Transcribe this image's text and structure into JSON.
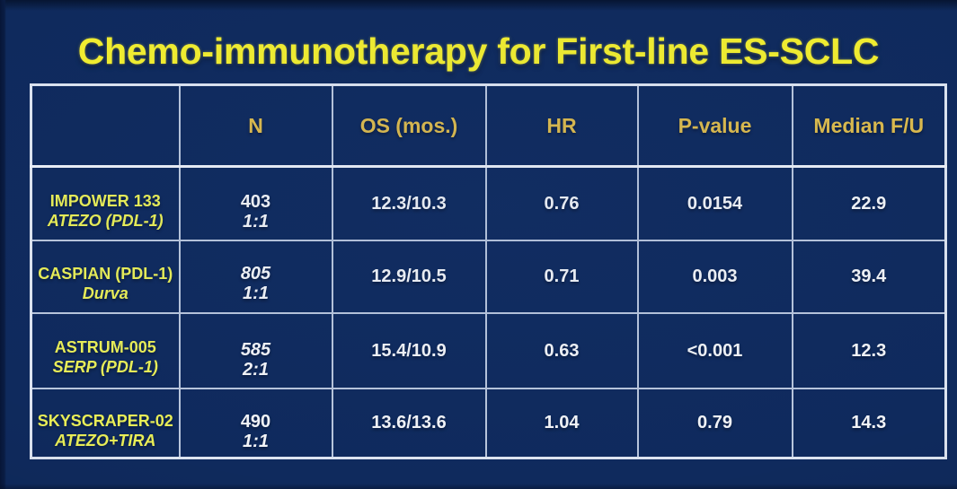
{
  "title": "Chemo-immunotherapy for First-line ES-SCLC",
  "colors": {
    "background": "#0f2a5d",
    "title_yellow": "#f2ee2f",
    "header_gold": "#ddbb4c",
    "study_yellow": "#e9ee57",
    "value_white": "#f3f5f8",
    "grid_line": "#b9c6dc"
  },
  "chart_data": {
    "type": "table",
    "title": "Chemo-immunotherapy for First-line ES-SCLC",
    "columns": [
      "",
      "N",
      "OS (mos.)",
      "HR",
      "P-value",
      "Median F/U"
    ],
    "rows": [
      {
        "study_line1": "IMPOWER 133",
        "study_line2": "ATEZO (PDL-1)",
        "n_line1": "403",
        "n_line2": "1:1",
        "os": "12.3/10.3",
        "hr": "0.76",
        "p_value": "0.0154",
        "median_fu": "22.9"
      },
      {
        "study_line1": "CASPIAN (PDL-1)",
        "study_line2": "Durva",
        "n_line1": "805",
        "n_line2": "1:1",
        "os": "12.9/10.5",
        "hr": "0.71",
        "p_value": "0.003",
        "median_fu": "39.4"
      },
      {
        "study_line1": "ASTRUM-005",
        "study_line2": "SERP (PDL-1)",
        "n_line1": "585",
        "n_line2": "2:1",
        "os": "15.4/10.9",
        "hr": "0.63",
        "p_value": "<0.001",
        "median_fu": "12.3"
      },
      {
        "study_line1": "SKYSCRAPER-02",
        "study_line2": "ATEZO+TIRA",
        "n_line1": "490",
        "n_line2": "1:1",
        "os": "13.6/13.6",
        "hr": "1.04",
        "p_value": "0.79",
        "median_fu": "14.3"
      }
    ]
  }
}
